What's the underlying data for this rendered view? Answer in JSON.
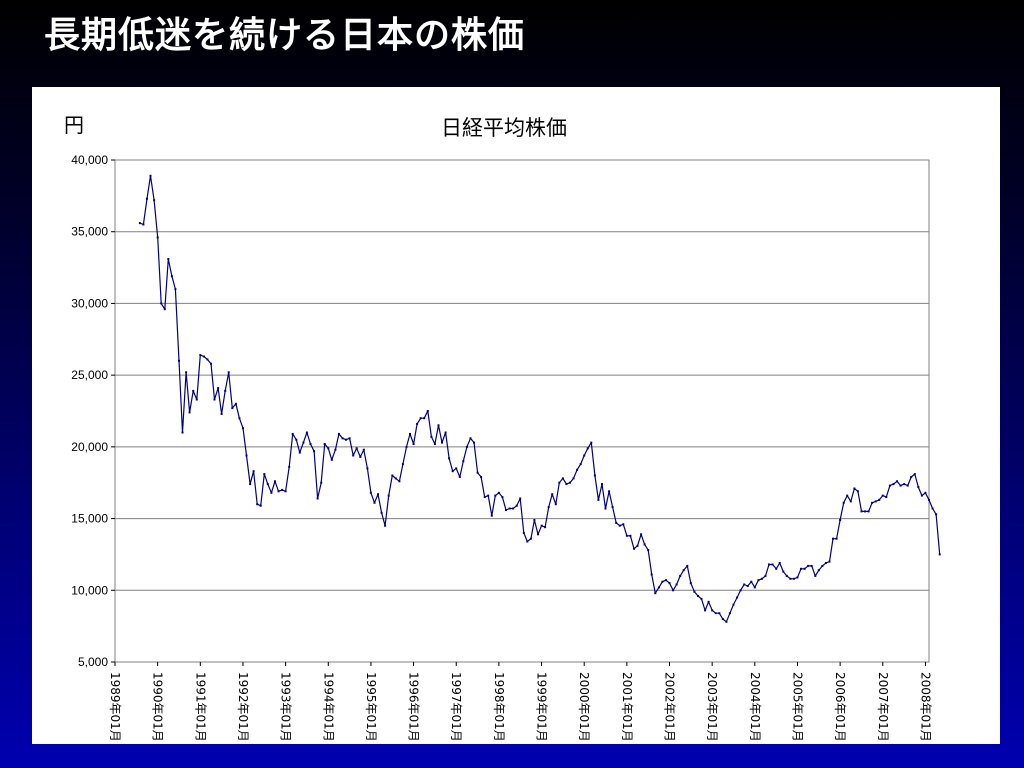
{
  "slide": {
    "title": "長期低迷を続ける日本の株価"
  },
  "colors": {
    "line": "#000080",
    "grid": "#808080",
    "frame": "#808080"
  },
  "chart_data": {
    "type": "line",
    "title": "日経平均株価",
    "ylabel": "円",
    "xlabel": "",
    "ylim": [
      5000,
      40000
    ],
    "yticks": [
      5000,
      10000,
      15000,
      20000,
      25000,
      30000,
      35000,
      40000
    ],
    "ytick_labels": [
      "5,000",
      "10,000",
      "15,000",
      "20,000",
      "25,000",
      "30,000",
      "35,000",
      "40,000"
    ],
    "xlim": [
      0,
      229
    ],
    "xticks": [
      0,
      12,
      24,
      36,
      48,
      60,
      72,
      84,
      96,
      108,
      120,
      132,
      144,
      156,
      168,
      180,
      192,
      204,
      216,
      228
    ],
    "xtick_labels": [
      "1989年01月",
      "1990年01月",
      "1991年01月",
      "1992年01月",
      "1993年01月",
      "1994年01月",
      "1995年01月",
      "1996年01月",
      "1997年01月",
      "1998年01月",
      "1999年01月",
      "2000年01月",
      "2001年01月",
      "2002年01月",
      "2003年01月",
      "2004年01月",
      "2005年01月",
      "2006年01月",
      "2007年01月",
      "2008年01月"
    ],
    "grid": true,
    "legend": "none",
    "series": [
      {
        "x_start_index": 7,
        "values": [
          35600,
          35500,
          37300,
          38900,
          37200,
          34600,
          30000,
          29600,
          33100,
          31900,
          31000,
          26000,
          21000,
          25200,
          22400,
          23900,
          23300,
          26400,
          26300,
          26100,
          25800,
          23300,
          24100,
          22300,
          23900,
          25200,
          22700,
          23000,
          22000,
          21300,
          19400,
          17400,
          18300,
          16000,
          15900,
          18100,
          17400,
          16800,
          17600,
          16900,
          17000,
          16900,
          18600,
          20900,
          20500,
          19600,
          20300,
          21000,
          20200,
          19700,
          16400,
          17500,
          20200,
          19900,
          19100,
          19800,
          20900,
          20600,
          20500,
          20600,
          19400,
          19900,
          19300,
          19800,
          18500,
          16800,
          16100,
          16700,
          15400,
          14500,
          16600,
          18000,
          17800,
          17600,
          18800,
          20000,
          20900,
          20200,
          21600,
          22000,
          22000,
          22500,
          20700,
          20200,
          21500,
          20300,
          21000,
          19200,
          18300,
          18500,
          17900,
          19000,
          20000,
          20600,
          20300,
          18200,
          17900,
          16500,
          16600,
          15200,
          16600,
          16800,
          16500,
          15600,
          15700,
          15700,
          15900,
          16400,
          14000,
          13400,
          13600,
          14900,
          13900,
          14500,
          14400,
          15800,
          16700,
          16000,
          17500,
          17800,
          17400,
          17500,
          17800,
          18400,
          18800,
          19400,
          19900,
          20300,
          18000,
          16300,
          17400,
          15700,
          16900,
          15800,
          14700,
          14500,
          14600,
          13800,
          13800,
          12900,
          13100,
          13900,
          13200,
          12800,
          11100,
          9800,
          10200,
          10600,
          10700,
          10500,
          10000,
          10400,
          11000,
          11400,
          11700,
          10500,
          9900,
          9600,
          9400,
          8600,
          9200,
          8600,
          8400,
          8400,
          8000,
          7800,
          8400,
          9000,
          9500,
          10000,
          10400,
          10300,
          10600,
          10200,
          10700,
          10800,
          11000,
          11800,
          11800,
          11500,
          11900,
          11300,
          11000,
          10800,
          10800,
          10900,
          11500,
          11500,
          11700,
          11700,
          11000,
          11400,
          11700,
          11900,
          12000,
          13600,
          13600,
          14900,
          16100,
          16600,
          16200,
          17100,
          16900,
          15500,
          15500,
          15500,
          16100,
          16200,
          16300,
          16600,
          16500,
          17300,
          17400,
          17600,
          17300,
          17400,
          17300,
          17900,
          18100,
          17200,
          16600,
          16800,
          16300,
          15700,
          15300,
          12500
        ]
      }
    ]
  }
}
